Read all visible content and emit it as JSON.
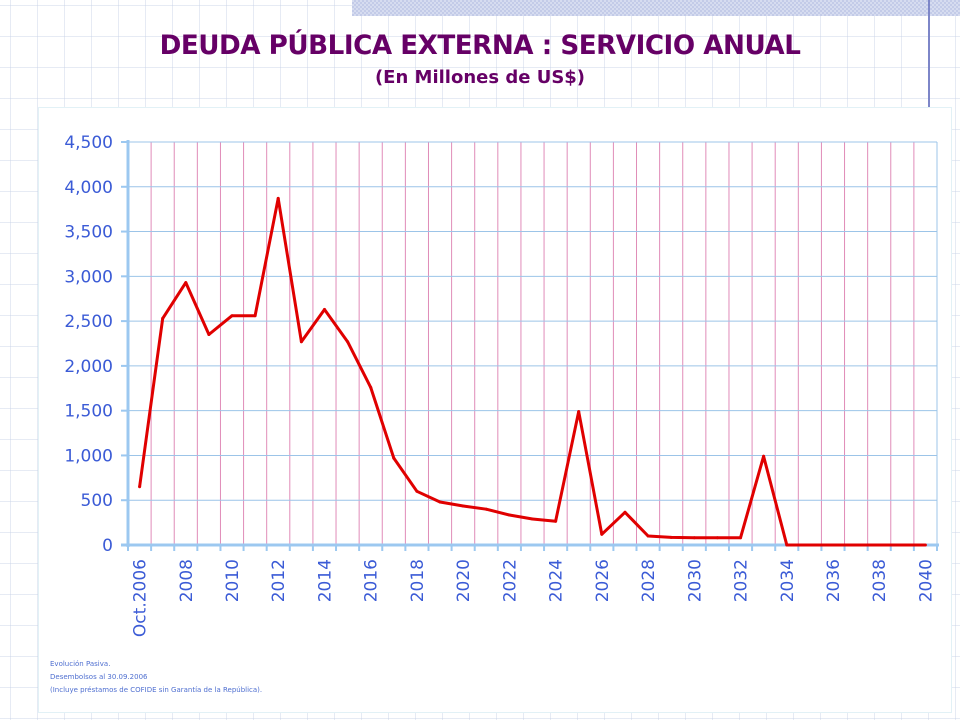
{
  "slide": {
    "title": "DEUDA PÚBLICA EXTERNA : SERVICIO ANUAL",
    "subtitle": "(En Millones de US$)",
    "footnotes": [
      "Evolución Pasiva.",
      "Desembolsos al 30.09.2006",
      "(Incluye préstamos de COFIDE sin Garantía de la República)."
    ]
  },
  "colors": {
    "title": "#660066",
    "line": "#e00000",
    "axis": "#9cc8f0",
    "h_grid": "#9cc4e8",
    "v_grid": "#e08cb8",
    "tick_text": "#3b5bd6"
  },
  "chart_data": {
    "type": "line",
    "title": "DEUDA PÚBLICA EXTERNA : SERVICIO ANUAL",
    "subtitle": "(En Millones de US$)",
    "xlabel": "",
    "ylabel": "",
    "ylim": [
      0,
      4500
    ],
    "yticks": [
      0,
      500,
      1000,
      1500,
      2000,
      2500,
      3000,
      3500,
      4000,
      4500
    ],
    "ytick_labels": [
      "0",
      "500",
      "1,000",
      "1,500",
      "2,000",
      "2,500",
      "3,000",
      "3,500",
      "4,000",
      "4,500"
    ],
    "grid": true,
    "legend": "none",
    "categories": [
      "Oct.2006",
      "2007",
      "2008",
      "2009",
      "2010",
      "2011",
      "2012",
      "2013",
      "2014",
      "2015",
      "2016",
      "2017",
      "2018",
      "2019",
      "2020",
      "2021",
      "2022",
      "2023",
      "2024",
      "2025",
      "2026",
      "2027",
      "2028",
      "2029",
      "2030",
      "2031",
      "2032",
      "2033",
      "2034",
      "2035",
      "2036",
      "2037",
      "2038",
      "2039",
      "2040"
    ],
    "xtick_labels": [
      "Oct.2006",
      "",
      "2008",
      "",
      "2010",
      "",
      "2012",
      "",
      "2014",
      "",
      "2016",
      "",
      "2018",
      "",
      "2020",
      "",
      "2022",
      "",
      "2024",
      "",
      "2026",
      "",
      "2028",
      "",
      "2030",
      "",
      "2032",
      "",
      "2034",
      "",
      "2036",
      "",
      "2038",
      "",
      "2040"
    ],
    "series": [
      {
        "name": "Servicio anual",
        "values": [
          650,
          2530,
          2930,
          2350,
          2560,
          2560,
          3870,
          2270,
          2630,
          2270,
          1760,
          970,
          600,
          480,
          435,
          400,
          335,
          290,
          265,
          1490,
          120,
          365,
          100,
          85,
          80,
          80,
          80,
          990,
          0,
          0,
          0,
          0,
          0,
          0,
          0
        ]
      }
    ]
  }
}
